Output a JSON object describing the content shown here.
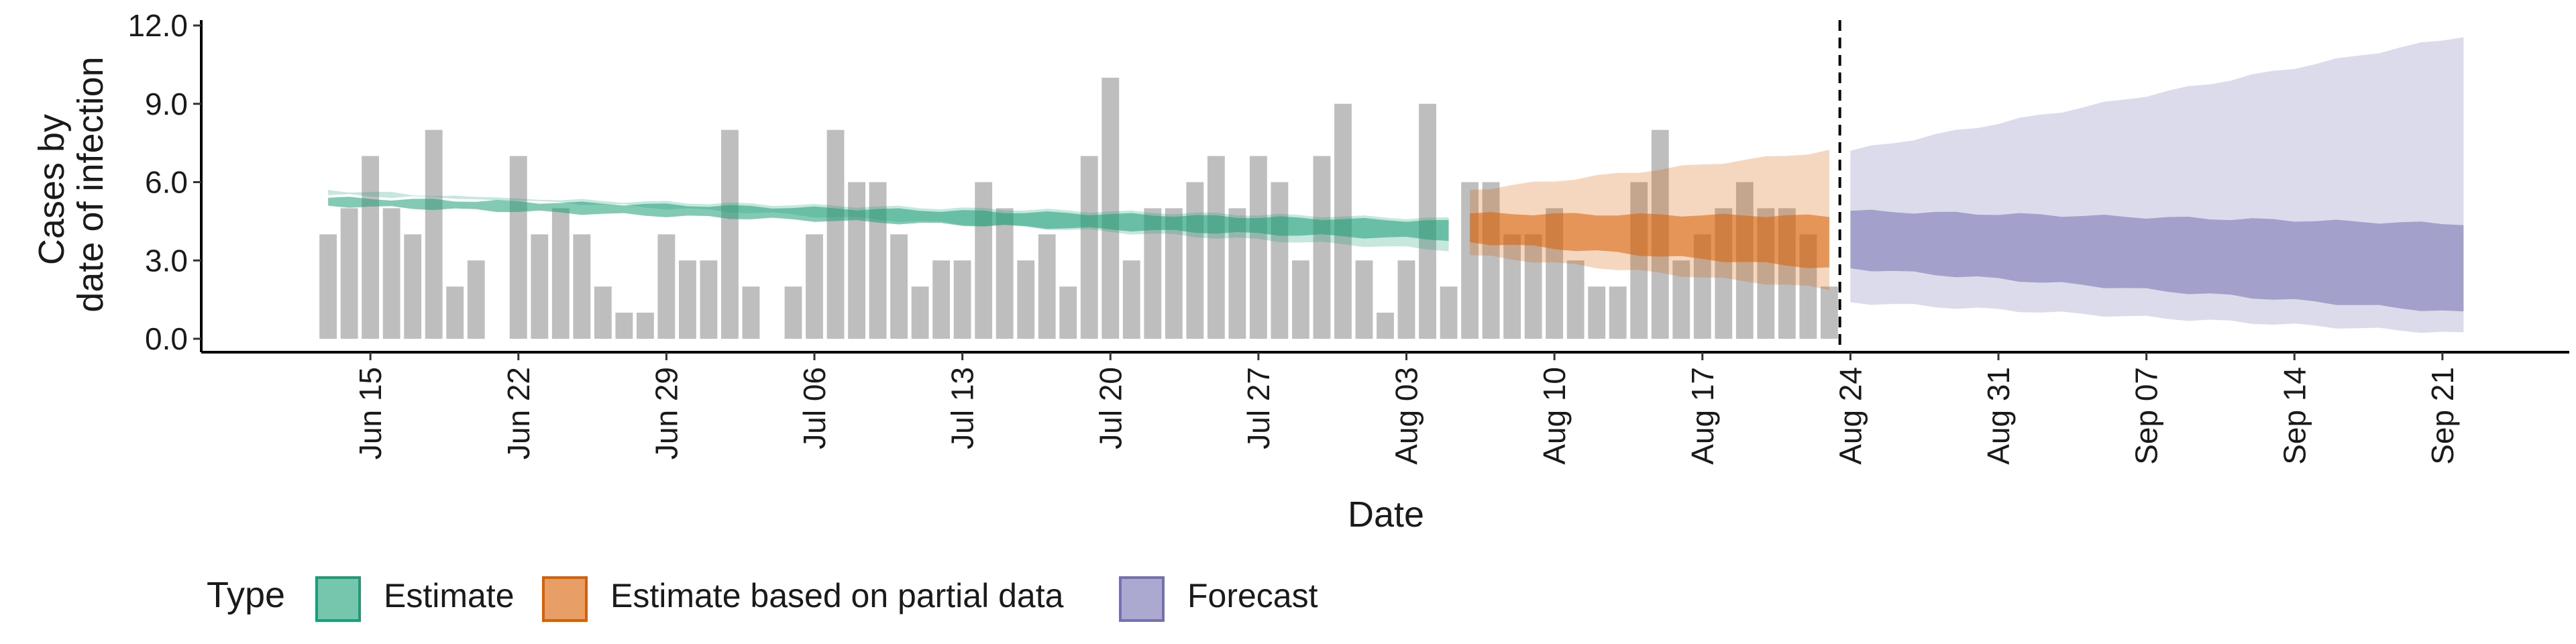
{
  "chart_data": {
    "type": "bar",
    "xlabel": "Date",
    "ylabel_lines": [
      "Cases by",
      "date of infection"
    ],
    "ylim": [
      0,
      12
    ],
    "yticks": [
      "0.0",
      "3.0",
      "6.0",
      "9.0",
      "12.0"
    ],
    "x_range": [
      "2020-06-07",
      "2020-09-27"
    ],
    "xticks": [
      {
        "date": "2020-06-15",
        "label": "Jun 15"
      },
      {
        "date": "2020-06-22",
        "label": "Jun 22"
      },
      {
        "date": "2020-06-29",
        "label": "Jun 29"
      },
      {
        "date": "2020-07-06",
        "label": "Jul 06"
      },
      {
        "date": "2020-07-13",
        "label": "Jul 13"
      },
      {
        "date": "2020-07-20",
        "label": "Jul 20"
      },
      {
        "date": "2020-07-27",
        "label": "Jul 27"
      },
      {
        "date": "2020-08-03",
        "label": "Aug 03"
      },
      {
        "date": "2020-08-10",
        "label": "Aug 10"
      },
      {
        "date": "2020-08-17",
        "label": "Aug 17"
      },
      {
        "date": "2020-08-24",
        "label": "Aug 24"
      },
      {
        "date": "2020-08-31",
        "label": "Aug 31"
      },
      {
        "date": "2020-09-07",
        "label": "Sep 07"
      },
      {
        "date": "2020-09-14",
        "label": "Sep 14"
      },
      {
        "date": "2020-09-21",
        "label": "Sep 21"
      }
    ],
    "bars": {
      "start_date": "2020-06-13",
      "color": "#bebebe",
      "values": [
        4,
        5,
        7,
        5,
        4,
        8,
        2,
        3,
        0,
        7,
        4,
        5,
        4,
        2,
        1,
        1,
        4,
        3,
        3,
        8,
        2,
        0,
        2,
        4,
        8,
        6,
        6,
        4,
        2,
        3,
        3,
        6,
        5,
        3,
        4,
        2,
        7,
        10,
        3,
        5,
        5,
        6,
        7,
        5,
        7,
        6,
        3,
        7,
        9,
        3,
        1,
        3,
        9,
        2,
        6,
        6,
        4,
        4,
        5,
        3,
        2,
        2,
        6,
        8,
        3,
        4,
        5,
        6,
        5,
        5,
        4,
        2
      ]
    },
    "vline_date": "2020-08-23",
    "series": [
      {
        "name": "Estimate",
        "color": "#1b9e77",
        "start_date": "2020-06-13",
        "end_date": "2020-08-05",
        "outer_lo": [
          5.5,
          4.6
        ],
        "outer_hi": [
          5.7,
          3.4
        ],
        "inner_lo": [
          5.4,
          4.5
        ],
        "inner_hi": [
          5.1,
          3.8
        ]
      },
      {
        "name": "Estimate based on partial data",
        "color": "#d95f02",
        "start_date": "2020-08-06",
        "end_date": "2020-08-23",
        "outer_lo": [
          3.2,
          1.9
        ],
        "outer_hi": [
          5.7,
          7.2
        ],
        "inner_lo": [
          4.8,
          4.7
        ],
        "inner_hi": [
          3.7,
          2.7
        ]
      },
      {
        "name": "Forecast",
        "color": "#7570b3",
        "start_date": "2020-08-24",
        "end_date": "2020-09-22",
        "outer_lo": [
          7.2,
          11.6
        ],
        "outer_hi": [
          1.4,
          0.2
        ],
        "inner_lo": [
          4.9,
          4.4
        ],
        "inner_hi": [
          2.7,
          1.0
        ]
      }
    ],
    "legend": {
      "title": "Type",
      "position": "bottom",
      "items": [
        "Estimate",
        "Estimate based on partial data",
        "Forecast"
      ]
    },
    "grid": false
  }
}
